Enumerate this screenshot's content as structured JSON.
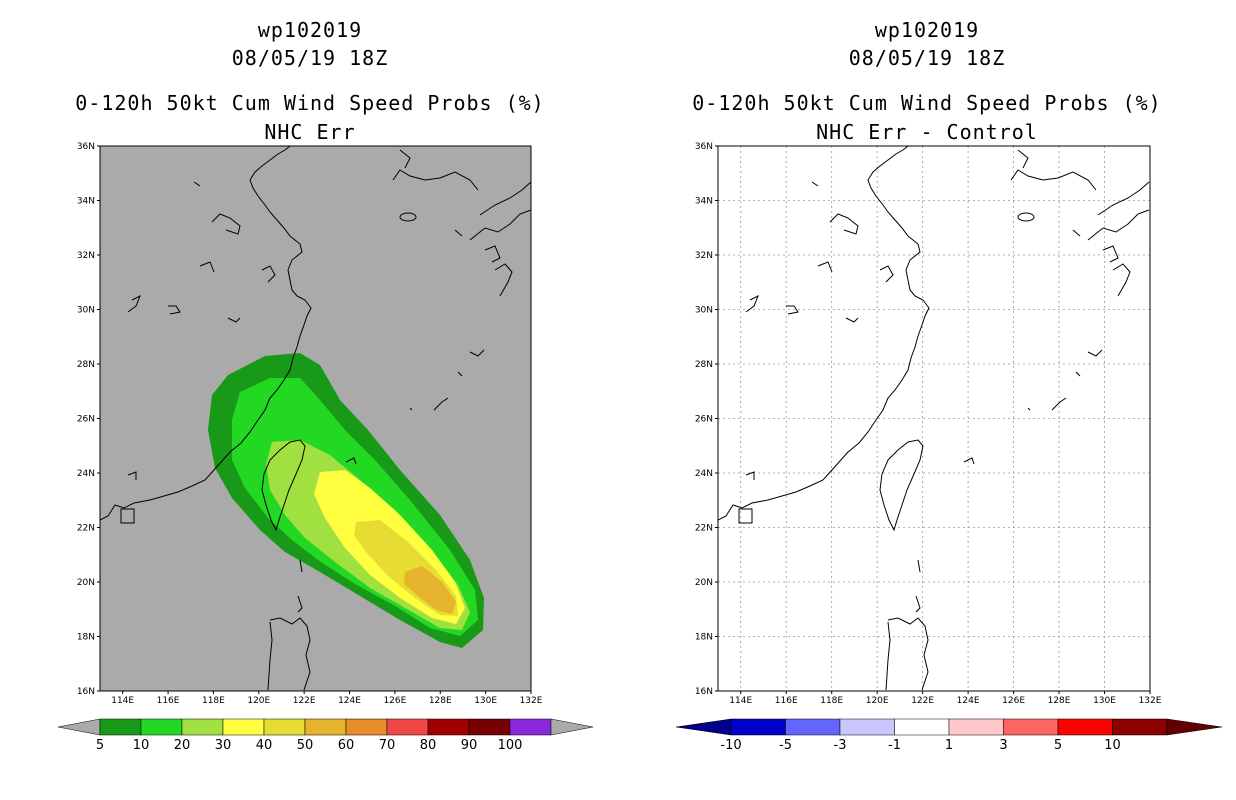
{
  "left_panel": {
    "title_storm": "wp102019",
    "title_date": "08/05/19 18Z",
    "title_product": "0-120h 50kt Cum Wind Speed Probs (%)",
    "title_subtitle": "NHC Err",
    "colorbar": {
      "labels": [
        "5",
        "10",
        "20",
        "30",
        "40",
        "50",
        "60",
        "70",
        "80",
        "90",
        "100"
      ],
      "colors": [
        "#189a18",
        "#22d822",
        "#a0e040",
        "#ffff40",
        "#e6dc32",
        "#e6b42c",
        "#e68c28",
        "#f04646",
        "#a00000",
        "#780000",
        "#8c28dc"
      ]
    }
  },
  "right_panel": {
    "title_storm": "wp102019",
    "title_date": "08/05/19 18Z",
    "title_product": "0-120h 50kt Cum Wind Speed Probs (%)",
    "title_subtitle": "NHC Err - Control",
    "colorbar": {
      "labels": [
        "-10",
        "-5",
        "-3",
        "-1",
        "1",
        "3",
        "5",
        "10"
      ],
      "colors": [
        "#0000c8",
        "#6464ff",
        "#c8c8ff",
        "#ffffff",
        "#ffc8c8",
        "#ff6464",
        "#ff0000",
        "#8c0000"
      ]
    }
  },
  "axes": {
    "lat_ticks": [
      "36N",
      "34N",
      "32N",
      "30N",
      "28N",
      "26N",
      "24N",
      "22N",
      "20N",
      "18N",
      "16N"
    ],
    "lon_ticks": [
      "114E",
      "116E",
      "118E",
      "120E",
      "122E",
      "124E",
      "126E",
      "128E",
      "130E",
      "132E"
    ]
  },
  "chart_data": [
    {
      "type": "heatmap",
      "title": "0-120h 50kt Cum Wind Speed Probs (%)",
      "subtitle": "NHC Err",
      "storm": "wp102019",
      "date": "08/05/19 18Z",
      "xlim": [
        113,
        132
      ],
      "ylim": [
        16,
        36
      ],
      "units": "%",
      "contour_levels": [
        5,
        10,
        20,
        30,
        40,
        50,
        60,
        70,
        80,
        90,
        100
      ],
      "probability_swath_max_pct": 50,
      "swath_center_track_lonlat": [
        [
          119.5,
          26.5
        ],
        [
          121.5,
          24.5
        ],
        [
          124,
          22.5
        ],
        [
          126.5,
          20.8
        ],
        [
          128.5,
          19.3
        ]
      ]
    },
    {
      "type": "heatmap",
      "title": "0-120h 50kt Cum Wind Speed Probs (%)",
      "subtitle": "NHC Err - Control",
      "storm": "wp102019",
      "date": "08/05/19 18Z",
      "xlim": [
        113,
        132
      ],
      "ylim": [
        16,
        36
      ],
      "units": "%",
      "contour_levels": [
        -10,
        -5,
        -3,
        -1,
        1,
        3,
        5,
        10
      ],
      "difference_field": "near zero everywhere"
    }
  ]
}
